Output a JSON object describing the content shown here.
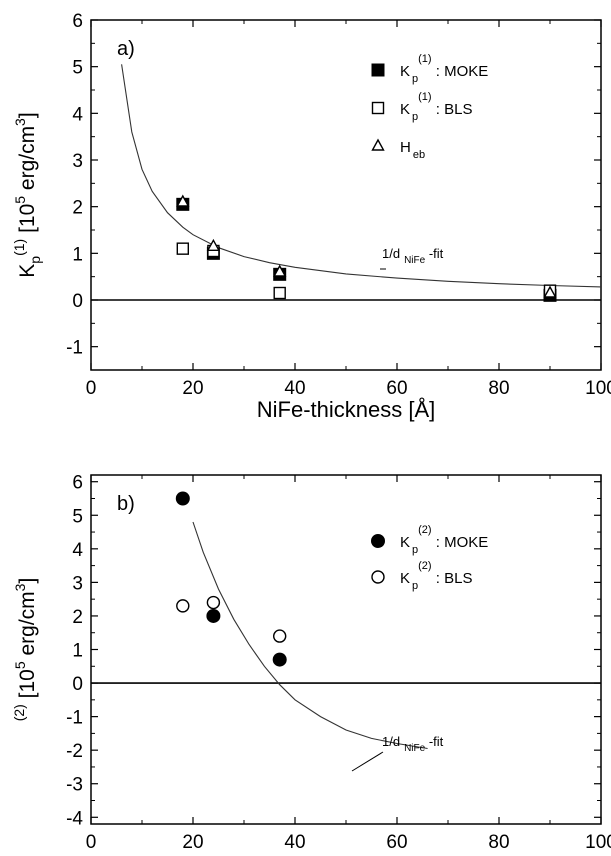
{
  "chart_data": [
    {
      "type": "scatter",
      "panel_label": "a)",
      "xlabel": "NiFe-thickness [Å]",
      "ylabel": {
        "base": "K",
        "sub": "p",
        "sup": "(1)",
        "unit_pre": " [10",
        "unit_exp": "5",
        "unit_mid": " erg/cm",
        "unit_exp2": "3",
        "unit_post": "]"
      },
      "xlim": [
        0,
        100
      ],
      "ylim": [
        -1.5,
        6
      ],
      "xticks": [
        "0",
        "20",
        "40",
        "60",
        "80",
        "100"
      ],
      "yticks": [
        "-1",
        "0",
        "1",
        "2",
        "3",
        "4",
        "5",
        "6"
      ],
      "series": [
        {
          "name": "K p(1) : MOKE",
          "legend": {
            "base": "K",
            "sub": "p",
            "sup": "(1)",
            "text": " : MOKE"
          },
          "marker": "filled-square",
          "x": [
            18,
            24,
            37,
            90
          ],
          "y": [
            2.05,
            1.0,
            0.55,
            0.1
          ]
        },
        {
          "name": "K p(1) : BLS",
          "legend": {
            "base": "K",
            "sub": "p",
            "sup": "(1)",
            "text": " : BLS"
          },
          "marker": "open-square",
          "x": [
            18,
            24,
            37,
            90
          ],
          "y": [
            1.1,
            1.05,
            0.15,
            0.2
          ]
        },
        {
          "name": "H eb",
          "legend": {
            "base": "H",
            "sub": "eb",
            "sup": "",
            "text": ""
          },
          "marker": "open-triangle",
          "x": [
            18,
            24,
            37,
            90
          ],
          "y": [
            2.1,
            1.15,
            0.6,
            0.15
          ]
        }
      ],
      "fit": {
        "label_base": "1/d",
        "label_sub": "NiFe",
        "label_post": " -fit",
        "x": [
          6,
          8,
          10,
          12,
          15,
          18,
          20,
          25,
          30,
          35,
          40,
          50,
          60,
          70,
          80,
          90,
          100
        ],
        "y": [
          5.05,
          3.6,
          2.8,
          2.33,
          1.87,
          1.56,
          1.4,
          1.12,
          0.93,
          0.8,
          0.7,
          0.56,
          0.47,
          0.4,
          0.35,
          0.31,
          0.28
        ]
      }
    },
    {
      "type": "scatter",
      "panel_label": "b)",
      "xlabel": "",
      "ylabel": {
        "base": "",
        "sub": "",
        "sup": "(2)",
        "unit_pre": " [10",
        "unit_exp": "5",
        "unit_mid": " erg/cm",
        "unit_exp2": "3",
        "unit_post": "]"
      },
      "xlim": [
        0,
        100
      ],
      "ylim": [
        -4.2,
        6.2
      ],
      "xticks": [
        "0",
        "20",
        "40",
        "60",
        "80",
        "100"
      ],
      "yticks": [
        "-4",
        "-3",
        "-2",
        "-1",
        "0",
        "1",
        "2",
        "3",
        "4",
        "5",
        "6"
      ],
      "series": [
        {
          "name": "K p(2) : MOKE",
          "legend": {
            "base": "K",
            "sub": "p",
            "sup": "(2)",
            "text": " : MOKE"
          },
          "marker": "filled-circle",
          "x": [
            18,
            24,
            37
          ],
          "y": [
            5.5,
            2.0,
            0.7
          ]
        },
        {
          "name": "K p(2) : BLS",
          "legend": {
            "base": "K",
            "sub": "p",
            "sup": "(2)",
            "text": " : BLS"
          },
          "marker": "open-circle",
          "x": [
            18,
            24,
            37
          ],
          "y": [
            2.3,
            2.4,
            1.4
          ]
        }
      ],
      "fit": {
        "label_base": "1/d",
        "label_sub": "NiFe",
        "label_post": " -fit",
        "x": [
          20,
          22,
          25,
          28,
          31,
          34,
          37,
          40,
          45,
          50,
          55,
          60,
          66
        ],
        "y": [
          4.8,
          3.9,
          2.8,
          1.9,
          1.15,
          0.5,
          -0.05,
          -0.5,
          -1.0,
          -1.4,
          -1.65,
          -1.8,
          -1.95
        ]
      }
    }
  ]
}
